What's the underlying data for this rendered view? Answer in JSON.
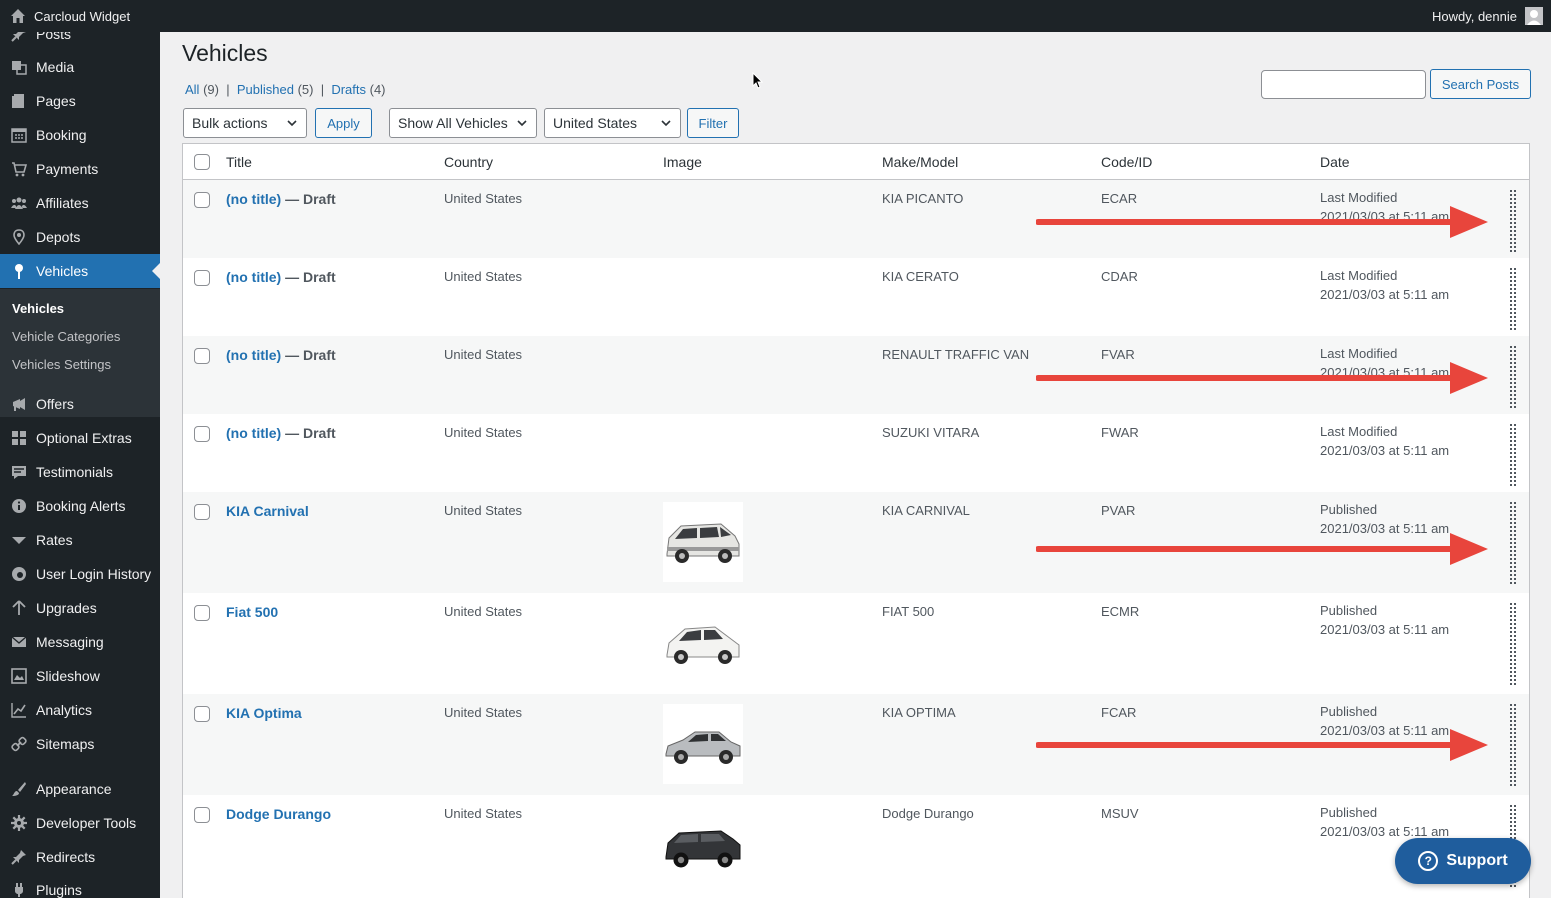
{
  "adminbar": {
    "site_name": "Carcloud Widget",
    "howdy": "Howdy, dennie"
  },
  "sidebar": {
    "items": [
      {
        "label": "Posts",
        "icon": "pin-icon"
      },
      {
        "label": "Media",
        "icon": "media-icon"
      },
      {
        "label": "Pages",
        "icon": "pages-icon"
      },
      {
        "label": "Booking",
        "icon": "calendar-icon"
      },
      {
        "label": "Payments",
        "icon": "cart-icon"
      },
      {
        "label": "Affiliates",
        "icon": "groups-icon"
      },
      {
        "label": "Depots",
        "icon": "location-icon"
      },
      {
        "label": "Vehicles",
        "icon": "pin-marker-icon",
        "active": true
      },
      {
        "label": "Offers",
        "icon": "megaphone-icon"
      },
      {
        "label": "Optional Extras",
        "icon": "grid-icon"
      },
      {
        "label": "Testimonials",
        "icon": "testimonial-icon"
      },
      {
        "label": "Booking Alerts",
        "icon": "info-icon"
      },
      {
        "label": "Rates",
        "icon": "rates-icon"
      },
      {
        "label": "User Login History",
        "icon": "history-icon"
      },
      {
        "label": "Upgrades",
        "icon": "arrow-up-icon"
      },
      {
        "label": "Messaging",
        "icon": "email-icon"
      },
      {
        "label": "Slideshow",
        "icon": "slides-icon"
      },
      {
        "label": "Analytics",
        "icon": "chart-icon"
      },
      {
        "label": "Sitemaps",
        "icon": "link-icon"
      },
      {
        "label": "Appearance",
        "icon": "brush-icon"
      },
      {
        "label": "Developer Tools",
        "icon": "gear-icon"
      },
      {
        "label": "Redirects",
        "icon": "pin-icon"
      },
      {
        "label": "Plugins",
        "icon": "plugin-icon"
      }
    ],
    "submenu": [
      "Vehicles",
      "Vehicle Categories",
      "Vehicles Settings"
    ]
  },
  "page": {
    "title": "Vehicles",
    "views": {
      "all": "All",
      "all_count": "(9)",
      "published": "Published",
      "published_count": "(5)",
      "drafts": "Drafts",
      "drafts_count": "(4)",
      "sep": "|"
    },
    "search_button": "Search Posts",
    "bulk_actions": "Bulk actions",
    "apply": "Apply",
    "show_filter": "Show All Vehicles",
    "country_filter": "United States",
    "filter": "Filter"
  },
  "table": {
    "columns": [
      "Title",
      "Country",
      "Image",
      "Make/Model",
      "Code/ID",
      "Date"
    ],
    "rows": [
      {
        "title": "(no title)",
        "state": " — Draft",
        "country": "United States",
        "make": "KIA PICANTO",
        "code": "ECAR",
        "status": "Last Modified",
        "date": "2021/03/03 at 5:11 am",
        "image": null
      },
      {
        "title": "(no title)",
        "state": " — Draft",
        "country": "United States",
        "make": "KIA CERATO",
        "code": "CDAR",
        "status": "Last Modified",
        "date": "2021/03/03 at 5:11 am",
        "image": null
      },
      {
        "title": "(no title)",
        "state": " — Draft",
        "country": "United States",
        "make": "RENAULT TRAFFIC VAN",
        "code": "FVAR",
        "status": "Last Modified",
        "date": "2021/03/03 at 5:11 am",
        "image": null
      },
      {
        "title": "(no title)",
        "state": " — Draft",
        "country": "United States",
        "make": "SUZUKI VITARA",
        "code": "FWAR",
        "status": "Last Modified",
        "date": "2021/03/03 at 5:11 am",
        "image": null
      },
      {
        "title": "KIA Carnival",
        "state": "",
        "country": "United States",
        "make": "KIA CARNIVAL",
        "code": "PVAR",
        "status": "Published",
        "date": "2021/03/03 at 5:11 am",
        "image": "minivan-white"
      },
      {
        "title": "Fiat 500",
        "state": "",
        "country": "United States",
        "make": "FIAT 500",
        "code": "ECMR",
        "status": "Published",
        "date": "2021/03/03 at 5:11 am",
        "image": "compact-white"
      },
      {
        "title": "KIA Optima",
        "state": "",
        "country": "United States",
        "make": "KIA OPTIMA",
        "code": "FCAR",
        "status": "Published",
        "date": "2021/03/03 at 5:11 am",
        "image": "sedan-silver"
      },
      {
        "title": "Dodge Durango",
        "state": "",
        "country": "United States",
        "make": "Dodge Durango",
        "code": "MSUV",
        "status": "Published",
        "date": "2021/03/03 at 5:11 am",
        "image": "suv-dark"
      }
    ]
  },
  "support": {
    "label": "Support"
  },
  "colors": {
    "accent": "#2271b1",
    "sidebar": "#1d2327",
    "annotation_arrow": "#e8453c"
  }
}
